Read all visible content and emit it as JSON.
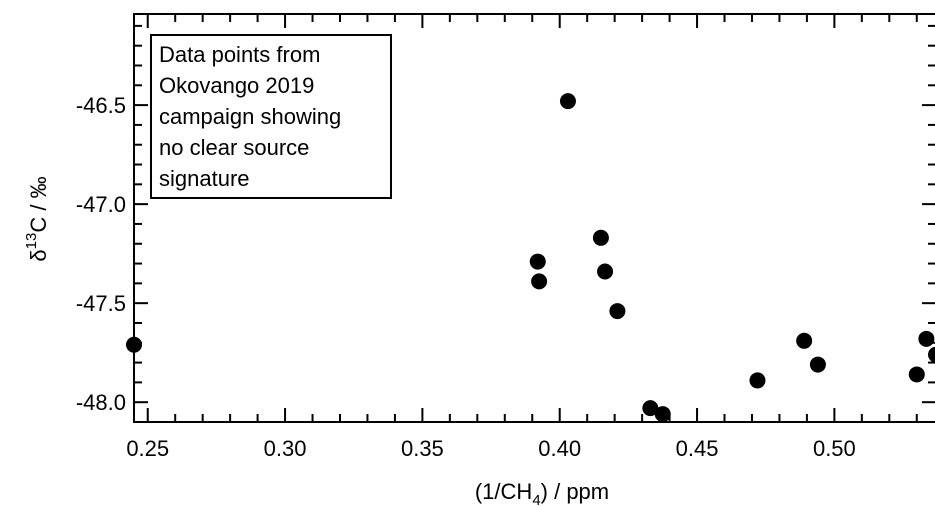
{
  "chart_data": {
    "type": "scatter",
    "title": "",
    "xlabel": "(1/CH",
    "xlabel_sub": "4",
    "xlabel_suffix": ") / ppm",
    "ylabel_delta": "δ",
    "ylabel_sup": "13",
    "ylabel_rest": "C / ‰",
    "xlim": [
      0.245,
      0.537
    ],
    "ylim": [
      -48.1,
      -46.04
    ],
    "x_ticks": [
      0.25,
      0.3,
      0.35,
      0.4,
      0.45,
      0.5
    ],
    "x_tick_labels": [
      "0.25",
      "0.30",
      "0.35",
      "0.40",
      "0.45",
      "0.50"
    ],
    "y_ticks": [
      -46.5,
      -47.0,
      -47.5,
      -48.0
    ],
    "y_tick_labels": [
      "-46.5",
      "-47.0",
      "-47.5",
      "-48.0"
    ],
    "grid": false,
    "annotation": {
      "lines": [
        "Data points from",
        "Okovango 2019",
        "campaign showing",
        "no clear source",
        "signature"
      ],
      "placement": "top-left"
    },
    "marker_color": "#000000",
    "points": [
      {
        "x": 0.245,
        "y": -47.71
      },
      {
        "x": 0.392,
        "y": -47.29
      },
      {
        "x": 0.3925,
        "y": -47.39
      },
      {
        "x": 0.403,
        "y": -46.48
      },
      {
        "x": 0.415,
        "y": -47.17
      },
      {
        "x": 0.4165,
        "y": -47.34
      },
      {
        "x": 0.421,
        "y": -47.54
      },
      {
        "x": 0.433,
        "y": -48.03
      },
      {
        "x": 0.4375,
        "y": -48.06
      },
      {
        "x": 0.472,
        "y": -47.89
      },
      {
        "x": 0.489,
        "y": -47.69
      },
      {
        "x": 0.494,
        "y": -47.81
      },
      {
        "x": 0.53,
        "y": -47.86
      },
      {
        "x": 0.5335,
        "y": -47.68
      },
      {
        "x": 0.537,
        "y": -47.76
      }
    ]
  }
}
